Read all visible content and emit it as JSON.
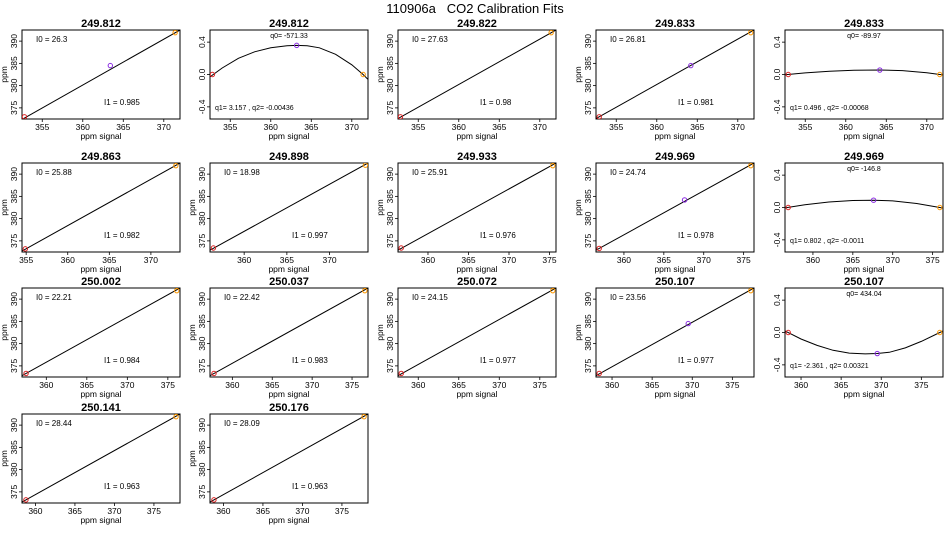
{
  "title": "110906a   CO2 Calibration Fits",
  "chart_data": [
    {
      "type": "scatter",
      "title": "249.812",
      "kind": "linear",
      "xlabel": "ppm signal",
      "ylabel": "ppm",
      "xlim": [
        352.5,
        372
      ],
      "ylim": [
        372.5,
        392.5
      ],
      "xticks": [
        355,
        360,
        365,
        370
      ],
      "yticks": [
        375,
        380,
        385,
        390
      ],
      "points": [
        {
          "x": 352.8,
          "y": 373.0,
          "c": "#dd2222"
        },
        {
          "x": 363.4,
          "y": 384.5,
          "c": "#8a2be2"
        },
        {
          "x": 371.4,
          "y": 391.9,
          "c": "#ff9900"
        }
      ],
      "line": [
        [
          352.5,
          372.4
        ],
        [
          372,
          392.5
        ]
      ],
      "annotations": [
        "I0 =  26.3",
        "I1 =  0.985"
      ]
    },
    {
      "type": "scatter",
      "title": "249.812",
      "kind": "quadratic",
      "xlabel": "ppm signal",
      "ylabel": "",
      "xlim": [
        352.5,
        372
      ],
      "ylim": [
        -0.55,
        0.55
      ],
      "xticks": [
        355,
        360,
        365,
        370
      ],
      "yticks": [
        -0.4,
        0.0,
        0.4
      ],
      "ytick_labels": [
        "-0.4",
        "0.0",
        "0.4"
      ],
      "points": [
        {
          "x": 352.8,
          "y": 0.0,
          "c": "#dd2222"
        },
        {
          "x": 363.2,
          "y": 0.36,
          "c": "#8a2be2"
        },
        {
          "x": 371.4,
          "y": 0.0,
          "c": "#ff9900"
        }
      ],
      "curve": [
        [
          352.5,
          -0.03
        ],
        [
          354,
          0.08
        ],
        [
          356,
          0.2
        ],
        [
          358,
          0.28
        ],
        [
          360,
          0.33
        ],
        [
          362,
          0.355
        ],
        [
          363.2,
          0.36
        ],
        [
          364.5,
          0.355
        ],
        [
          366,
          0.33
        ],
        [
          368,
          0.25
        ],
        [
          370,
          0.12
        ],
        [
          371.4,
          0.0
        ],
        [
          372,
          -0.06
        ]
      ],
      "annotations": [
        "q0= -571.33",
        "q1= 3.157 , q2= -0.00436"
      ]
    },
    {
      "type": "scatter",
      "title": "249.822",
      "kind": "linear",
      "xlabel": "ppm signal",
      "ylabel": "ppm",
      "xlim": [
        352.5,
        372
      ],
      "ylim": [
        372.5,
        392.5
      ],
      "xticks": [
        355,
        360,
        365,
        370
      ],
      "yticks": [
        375,
        380,
        385,
        390
      ],
      "points": [
        {
          "x": 352.8,
          "y": 373.0,
          "c": "#dd2222"
        },
        {
          "x": 371.4,
          "y": 391.9,
          "c": "#ff9900"
        }
      ],
      "line": [
        [
          352.5,
          372.6
        ],
        [
          372,
          392.5
        ]
      ],
      "annotations": [
        "I0 =  27.63",
        "I1 =  0.98"
      ]
    },
    {
      "type": "scatter",
      "title": "249.833",
      "kind": "linear",
      "xlabel": "ppm signal",
      "ylabel": "ppm",
      "xlim": [
        352.5,
        372
      ],
      "ylim": [
        372.5,
        392.5
      ],
      "xticks": [
        355,
        360,
        365,
        370
      ],
      "yticks": [
        375,
        380,
        385,
        390
      ],
      "points": [
        {
          "x": 352.9,
          "y": 373.0,
          "c": "#dd2222"
        },
        {
          "x": 364.2,
          "y": 384.5,
          "c": "#8a2be2"
        },
        {
          "x": 371.6,
          "y": 391.9,
          "c": "#ff9900"
        }
      ],
      "line": [
        [
          352.5,
          372.6
        ],
        [
          372,
          392.5
        ]
      ],
      "annotations": [
        "I0 =  26.81",
        "I1 =  0.981"
      ]
    },
    {
      "type": "scatter",
      "title": "249.833",
      "kind": "quadratic",
      "xlabel": "ppm signal",
      "ylabel": "",
      "xlim": [
        352.5,
        372
      ],
      "ylim": [
        -0.55,
        0.55
      ],
      "xticks": [
        355,
        360,
        365,
        370
      ],
      "yticks": [
        -0.4,
        0.0,
        0.4
      ],
      "ytick_labels": [
        "-0.4",
        "0.0",
        "0.4"
      ],
      "points": [
        {
          "x": 352.9,
          "y": 0.0,
          "c": "#dd2222"
        },
        {
          "x": 364.2,
          "y": 0.055,
          "c": "#8a2be2"
        },
        {
          "x": 371.6,
          "y": 0.0,
          "c": "#ff9900"
        }
      ],
      "curve": [
        [
          352.5,
          -0.004
        ],
        [
          355,
          0.02
        ],
        [
          358,
          0.04
        ],
        [
          361,
          0.052
        ],
        [
          364.2,
          0.055
        ],
        [
          367,
          0.048
        ],
        [
          370,
          0.022
        ],
        [
          371.6,
          0.0
        ],
        [
          372,
          -0.005
        ]
      ],
      "annotations": [
        "q0= -89.97",
        "q1= 0.496 , q2= -0.00068"
      ]
    },
    {
      "type": "scatter",
      "title": "249.863",
      "kind": "linear",
      "xlabel": "ppm signal",
      "ylabel": "ppm",
      "xlim": [
        354.5,
        373.5
      ],
      "ylim": [
        372.5,
        392.5
      ],
      "xticks": [
        355,
        360,
        365,
        370
      ],
      "yticks": [
        375,
        380,
        385,
        390
      ],
      "points": [
        {
          "x": 354.9,
          "y": 373.2,
          "c": "#dd2222"
        },
        {
          "x": 373.0,
          "y": 391.9,
          "c": "#ff9900"
        }
      ],
      "line": [
        [
          354.5,
          372.7
        ],
        [
          373.5,
          392.5
        ]
      ],
      "annotations": [
        "I0 =  25.88",
        "I1 =  0.982"
      ]
    },
    {
      "type": "scatter",
      "title": "249.898",
      "kind": "linear",
      "xlabel": "ppm signal",
      "ylabel": "ppm",
      "xlim": [
        356,
        374.5
      ],
      "ylim": [
        372.5,
        392.5
      ],
      "xticks": [
        360,
        365,
        370
      ],
      "yticks": [
        375,
        380,
        385,
        390
      ],
      "points": [
        {
          "x": 356.4,
          "y": 373.4,
          "c": "#dd2222"
        },
        {
          "x": 374.2,
          "y": 392.0,
          "c": "#ff9900"
        }
      ],
      "line": [
        [
          356,
          372.9
        ],
        [
          374.5,
          392.5
        ]
      ],
      "annotations": [
        "I0 =  18.98",
        "I1 =  0.997"
      ]
    },
    {
      "type": "scatter",
      "title": "249.933",
      "kind": "linear",
      "xlabel": "ppm signal",
      "ylabel": "ppm",
      "xlim": [
        356.3,
        375.8
      ],
      "ylim": [
        372.5,
        392.5
      ],
      "xticks": [
        360,
        365,
        370,
        375
      ],
      "yticks": [
        375,
        380,
        385,
        390
      ],
      "points": [
        {
          "x": 356.7,
          "y": 373.4,
          "c": "#dd2222"
        },
        {
          "x": 375.4,
          "y": 391.9,
          "c": "#ff9900"
        }
      ],
      "line": [
        [
          356.3,
          372.9
        ],
        [
          375.8,
          392.5
        ]
      ],
      "annotations": [
        "I0 =  25.91",
        "I1 =  0.976"
      ]
    },
    {
      "type": "scatter",
      "title": "249.969",
      "kind": "linear",
      "xlabel": "ppm signal",
      "ylabel": "ppm",
      "xlim": [
        356.5,
        376.3
      ],
      "ylim": [
        372.5,
        392.5
      ],
      "xticks": [
        360,
        365,
        370,
        375
      ],
      "yticks": [
        375,
        380,
        385,
        390
      ],
      "points": [
        {
          "x": 356.9,
          "y": 373.3,
          "c": "#dd2222"
        },
        {
          "x": 367.6,
          "y": 384.2,
          "c": "#8a2be2"
        },
        {
          "x": 375.9,
          "y": 391.9,
          "c": "#ff9900"
        }
      ],
      "line": [
        [
          356.5,
          372.9
        ],
        [
          376.3,
          392.5
        ]
      ],
      "annotations": [
        "I0 =  24.74",
        "I1 =  0.978"
      ]
    },
    {
      "type": "scatter",
      "title": "249.969",
      "kind": "quadratic",
      "xlabel": "ppm signal",
      "ylabel": "",
      "xlim": [
        356.5,
        376.3
      ],
      "ylim": [
        -0.55,
        0.55
      ],
      "xticks": [
        360,
        365,
        370,
        375
      ],
      "yticks": [
        -0.4,
        0.0,
        0.4
      ],
      "ytick_labels": [
        "-0.4",
        "0.0",
        "0.4"
      ],
      "points": [
        {
          "x": 356.9,
          "y": 0.0,
          "c": "#dd2222"
        },
        {
          "x": 367.6,
          "y": 0.09,
          "c": "#8a2be2"
        },
        {
          "x": 375.9,
          "y": 0.0,
          "c": "#ff9900"
        }
      ],
      "curve": [
        [
          356.5,
          -0.005
        ],
        [
          359,
          0.035
        ],
        [
          362,
          0.068
        ],
        [
          365,
          0.086
        ],
        [
          367.6,
          0.09
        ],
        [
          370,
          0.082
        ],
        [
          373,
          0.05
        ],
        [
          375.9,
          0.0
        ],
        [
          376.3,
          -0.008
        ]
      ],
      "annotations": [
        "q0= -146.8",
        "q1= 0.802 , q2= -0.0011"
      ]
    },
    {
      "type": "scatter",
      "title": "250.002",
      "kind": "linear",
      "xlabel": "ppm signal",
      "ylabel": "ppm",
      "xlim": [
        357,
        376.5
      ],
      "ylim": [
        372.5,
        392.5
      ],
      "xticks": [
        360,
        365,
        370,
        375
      ],
      "yticks": [
        375,
        380,
        385,
        390
      ],
      "points": [
        {
          "x": 357.5,
          "y": 373.3,
          "c": "#dd2222"
        },
        {
          "x": 376.1,
          "y": 391.9,
          "c": "#ff9900"
        }
      ],
      "line": [
        [
          357,
          372.8
        ],
        [
          376.5,
          392.5
        ]
      ],
      "annotations": [
        "I0 =  22.21",
        "I1 =  0.984"
      ]
    },
    {
      "type": "scatter",
      "title": "250.037",
      "kind": "linear",
      "xlabel": "ppm signal",
      "ylabel": "ppm",
      "xlim": [
        357.2,
        377
      ],
      "ylim": [
        372.5,
        392.5
      ],
      "xticks": [
        360,
        365,
        370,
        375
      ],
      "yticks": [
        375,
        380,
        385,
        390
      ],
      "points": [
        {
          "x": 357.7,
          "y": 373.3,
          "c": "#dd2222"
        },
        {
          "x": 376.6,
          "y": 391.9,
          "c": "#ff9900"
        }
      ],
      "line": [
        [
          357.2,
          372.8
        ],
        [
          377,
          392.5
        ]
      ],
      "annotations": [
        "I0 =  22.42",
        "I1 =  0.983"
      ]
    },
    {
      "type": "scatter",
      "title": "250.072",
      "kind": "linear",
      "xlabel": "ppm signal",
      "ylabel": "ppm",
      "xlim": [
        357.5,
        377
      ],
      "ylim": [
        372.5,
        392.5
      ],
      "xticks": [
        360,
        365,
        370,
        375
      ],
      "yticks": [
        375,
        380,
        385,
        390
      ],
      "points": [
        {
          "x": 357.9,
          "y": 373.3,
          "c": "#dd2222"
        },
        {
          "x": 376.6,
          "y": 391.9,
          "c": "#ff9900"
        }
      ],
      "line": [
        [
          357.5,
          372.8
        ],
        [
          377,
          392.5
        ]
      ],
      "annotations": [
        "I0 =  24.15",
        "I1 =  0.977"
      ]
    },
    {
      "type": "scatter",
      "title": "250.107",
      "kind": "linear",
      "xlabel": "ppm signal",
      "ylabel": "ppm",
      "xlim": [
        358,
        377.7
      ],
      "ylim": [
        372.5,
        392.5
      ],
      "xticks": [
        360,
        365,
        370,
        375
      ],
      "yticks": [
        375,
        380,
        385,
        390
      ],
      "points": [
        {
          "x": 358.4,
          "y": 373.3,
          "c": "#dd2222"
        },
        {
          "x": 369.5,
          "y": 384.5,
          "c": "#8a2be2"
        },
        {
          "x": 377.3,
          "y": 391.9,
          "c": "#ff9900"
        }
      ],
      "line": [
        [
          358,
          372.8
        ],
        [
          377.7,
          392.5
        ]
      ],
      "annotations": [
        "I0 =  23.56",
        "I1 =  0.977"
      ]
    },
    {
      "type": "scatter",
      "title": "250.107",
      "kind": "quadratic",
      "xlabel": "ppm signal",
      "ylabel": "",
      "xlim": [
        358,
        377.7
      ],
      "ylim": [
        -0.55,
        0.55
      ],
      "xticks": [
        360,
        365,
        370,
        375
      ],
      "yticks": [
        -0.4,
        0.0,
        0.4
      ],
      "ytick_labels": [
        "-0.4",
        "0.0",
        "0.4"
      ],
      "points": [
        {
          "x": 358.4,
          "y": 0.0,
          "c": "#dd2222"
        },
        {
          "x": 369.5,
          "y": -0.26,
          "c": "#8a2be2"
        },
        {
          "x": 377.3,
          "y": 0.0,
          "c": "#ff9900"
        }
      ],
      "curve": [
        [
          358,
          0.02
        ],
        [
          360,
          -0.08
        ],
        [
          362,
          -0.16
        ],
        [
          364,
          -0.22
        ],
        [
          366,
          -0.255
        ],
        [
          368,
          -0.265
        ],
        [
          369.5,
          -0.26
        ],
        [
          371,
          -0.245
        ],
        [
          373,
          -0.19
        ],
        [
          375,
          -0.11
        ],
        [
          377.3,
          0.0
        ],
        [
          377.7,
          0.02
        ]
      ],
      "annotations": [
        "q0= 434.04",
        "q1= -2.361 , q2= 0.00321"
      ]
    },
    {
      "type": "scatter",
      "title": "250.141",
      "kind": "linear",
      "xlabel": "ppm signal",
      "ylabel": "ppm",
      "xlim": [
        358.3,
        378.3
      ],
      "ylim": [
        372.5,
        392.5
      ],
      "xticks": [
        360,
        365,
        370,
        375
      ],
      "yticks": [
        375,
        380,
        385,
        390
      ],
      "points": [
        {
          "x": 358.8,
          "y": 373.2,
          "c": "#dd2222"
        },
        {
          "x": 377.8,
          "y": 391.9,
          "c": "#ff9900"
        }
      ],
      "line": [
        [
          358.3,
          372.7
        ],
        [
          378.3,
          392.5
        ]
      ],
      "annotations": [
        "I0 =  28.44",
        "I1 =  0.963"
      ]
    },
    {
      "type": "scatter",
      "title": "250.176",
      "kind": "linear",
      "xlabel": "ppm signal",
      "ylabel": "ppm",
      "xlim": [
        358.3,
        378.3
      ],
      "ylim": [
        372.5,
        392.5
      ],
      "xticks": [
        360,
        365,
        370,
        375
      ],
      "yticks": [
        375,
        380,
        385,
        390
      ],
      "points": [
        {
          "x": 358.8,
          "y": 373.2,
          "c": "#dd2222"
        },
        {
          "x": 377.8,
          "y": 391.9,
          "c": "#ff9900"
        }
      ],
      "line": [
        [
          358.3,
          372.7
        ],
        [
          378.3,
          392.5
        ]
      ],
      "annotations": [
        "I0 =  28.09",
        "I1 =  0.963"
      ]
    }
  ]
}
